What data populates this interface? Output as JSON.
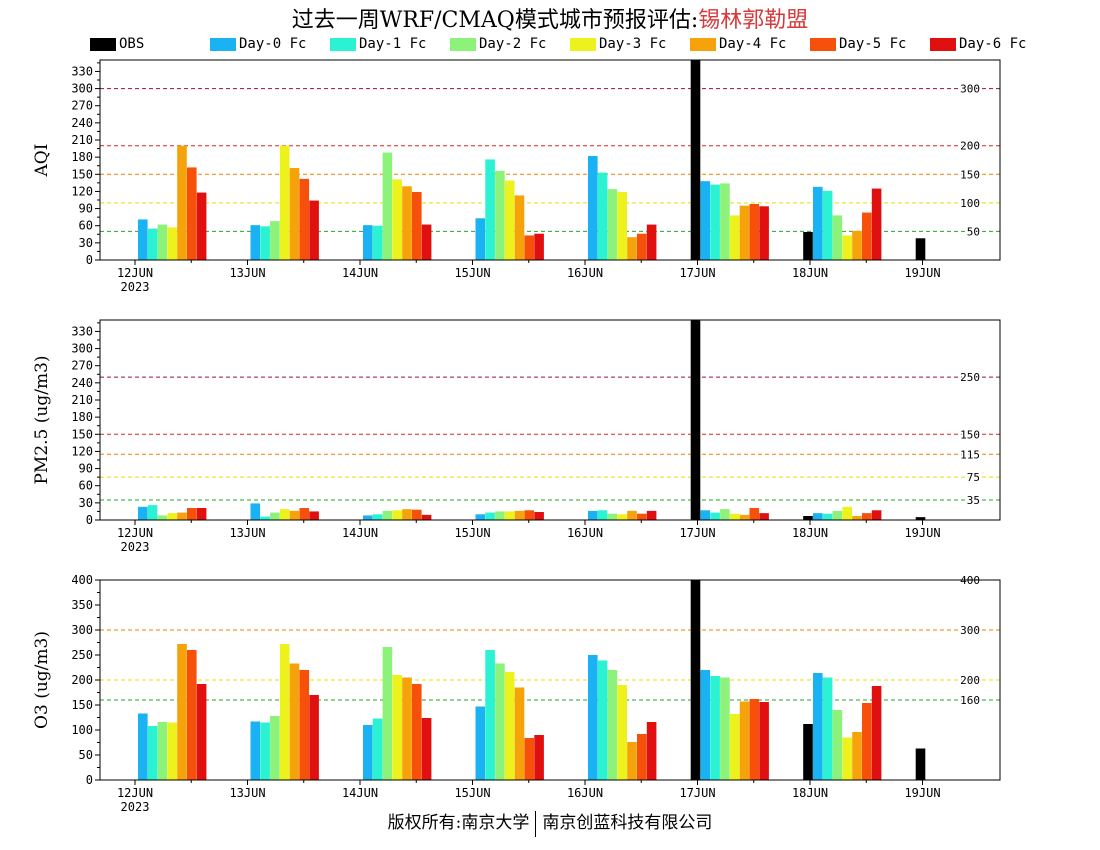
{
  "header": {
    "title_prefix": "过去一周WRF/CMAQ模式城市预报评估:",
    "station": "锡林郭勒盟"
  },
  "footer": {
    "left": "版权所有:南京大学",
    "right": "南京创蓝科技有限公司"
  },
  "colors": {
    "OBS": "#000000",
    "Day-0 Fc": "#1ab2f2",
    "Day-1 Fc": "#2af2d2",
    "Day-2 Fc": "#8cf27a",
    "Day-3 Fc": "#eef21c",
    "Day-4 Fc": "#f6a20a",
    "Day-5 Fc": "#f6500a",
    "Day-6 Fc": "#e01010"
  },
  "chart_data": [
    {
      "type": "bar",
      "ylabel": "AQI",
      "ylim": [
        0,
        350
      ],
      "yticks": [
        0,
        30,
        60,
        90,
        120,
        150,
        180,
        210,
        240,
        270,
        300,
        330
      ],
      "categories": [
        "12JUN",
        "13JUN",
        "14JUN",
        "15JUN",
        "16JUN",
        "17JUN",
        "18JUN",
        "19JUN"
      ],
      "first_category_year": "2023",
      "grid": false,
      "legend_position": "top",
      "thresholds": [
        {
          "value": 50,
          "label": "50",
          "color": "#22aa22"
        },
        {
          "value": 100,
          "label": "100",
          "color": "#e8e000"
        },
        {
          "value": 150,
          "label": "150",
          "color": "#f08000"
        },
        {
          "value": 200,
          "label": "200",
          "color": "#dd2222"
        },
        {
          "value": 300,
          "label": "300",
          "color": "#991133"
        }
      ],
      "series": [
        {
          "name": "OBS",
          "values": [
            null,
            null,
            null,
            null,
            null,
            350,
            49,
            38
          ]
        },
        {
          "name": "Day-0 Fc",
          "values": [
            71,
            61,
            61,
            73,
            182,
            138,
            128,
            null
          ]
        },
        {
          "name": "Day-1 Fc",
          "values": [
            55,
            59,
            60,
            176,
            153,
            132,
            121,
            null
          ]
        },
        {
          "name": "Day-2 Fc",
          "values": [
            62,
            68,
            188,
            156,
            124,
            134,
            78,
            null
          ]
        },
        {
          "name": "Day-3 Fc",
          "values": [
            57,
            200,
            141,
            139,
            119,
            78,
            43,
            null
          ]
        },
        {
          "name": "Day-4 Fc",
          "values": [
            200,
            161,
            129,
            113,
            40,
            95,
            51,
            null
          ]
        },
        {
          "name": "Day-5 Fc",
          "values": [
            162,
            142,
            119,
            43,
            46,
            98,
            83,
            null
          ]
        },
        {
          "name": "Day-6 Fc",
          "values": [
            118,
            104,
            62,
            46,
            62,
            94,
            125,
            null
          ]
        }
      ]
    },
    {
      "type": "bar",
      "ylabel": "PM2.5 (ug/m3)",
      "ylim": [
        0,
        350
      ],
      "yticks": [
        0,
        30,
        60,
        90,
        120,
        150,
        180,
        210,
        240,
        270,
        300,
        330
      ],
      "categories": [
        "12JUN",
        "13JUN",
        "14JUN",
        "15JUN",
        "16JUN",
        "17JUN",
        "18JUN",
        "19JUN"
      ],
      "first_category_year": "2023",
      "grid": false,
      "thresholds": [
        {
          "value": 35,
          "label": "35",
          "color": "#22aa22"
        },
        {
          "value": 75,
          "label": "75",
          "color": "#e8e000"
        },
        {
          "value": 115,
          "label": "115",
          "color": "#f08000"
        },
        {
          "value": 150,
          "label": "150",
          "color": "#dd2222"
        },
        {
          "value": 250,
          "label": "250",
          "color": "#991133"
        }
      ],
      "series": [
        {
          "name": "OBS",
          "values": [
            null,
            null,
            null,
            null,
            null,
            350,
            7,
            5
          ]
        },
        {
          "name": "Day-0 Fc",
          "values": [
            23,
            29,
            8,
            10,
            16,
            17,
            12,
            null
          ]
        },
        {
          "name": "Day-1 Fc",
          "values": [
            26,
            6,
            10,
            13,
            17,
            13,
            11,
            null
          ]
        },
        {
          "name": "Day-2 Fc",
          "values": [
            8,
            13,
            16,
            15,
            11,
            19,
            16,
            null
          ]
        },
        {
          "name": "Day-3 Fc",
          "values": [
            12,
            19,
            17,
            15,
            10,
            11,
            23,
            null
          ]
        },
        {
          "name": "Day-4 Fc",
          "values": [
            13,
            16,
            19,
            16,
            16,
            9,
            7,
            null
          ]
        },
        {
          "name": "Day-5 Fc",
          "values": [
            21,
            21,
            18,
            17,
            11,
            21,
            12,
            null
          ]
        },
        {
          "name": "Day-6 Fc",
          "values": [
            21,
            15,
            9,
            14,
            16,
            12,
            17,
            null
          ]
        }
      ]
    },
    {
      "type": "bar",
      "ylabel": "O3 (ug/m3)",
      "ylim": [
        0,
        400
      ],
      "yticks": [
        0,
        50,
        100,
        150,
        200,
        250,
        300,
        350,
        400
      ],
      "categories": [
        "12JUN",
        "13JUN",
        "14JUN",
        "15JUN",
        "16JUN",
        "17JUN",
        "18JUN",
        "19JUN"
      ],
      "first_category_year": "2023",
      "grid": false,
      "thresholds": [
        {
          "value": 160,
          "label": "160",
          "color": "#22aa22"
        },
        {
          "value": 200,
          "label": "200",
          "color": "#e8e000"
        },
        {
          "value": 300,
          "label": "300",
          "color": "#f08000"
        },
        {
          "value": 400,
          "label": "400",
          "color": "#dd2222"
        }
      ],
      "series": [
        {
          "name": "OBS",
          "values": [
            null,
            null,
            null,
            null,
            null,
            400,
            112,
            63
          ]
        },
        {
          "name": "Day-0 Fc",
          "values": [
            133,
            117,
            110,
            147,
            250,
            220,
            214,
            null
          ]
        },
        {
          "name": "Day-1 Fc",
          "values": [
            108,
            115,
            123,
            260,
            239,
            208,
            205,
            null
          ]
        },
        {
          "name": "Day-2 Fc",
          "values": [
            116,
            128,
            266,
            233,
            220,
            205,
            140,
            null
          ]
        },
        {
          "name": "Day-3 Fc",
          "values": [
            115,
            272,
            210,
            216,
            190,
            132,
            85,
            null
          ]
        },
        {
          "name": "Day-4 Fc",
          "values": [
            272,
            233,
            205,
            185,
            76,
            157,
            96,
            null
          ]
        },
        {
          "name": "Day-5 Fc",
          "values": [
            260,
            220,
            192,
            84,
            92,
            162,
            154,
            null
          ]
        },
        {
          "name": "Day-6 Fc",
          "values": [
            192,
            170,
            124,
            90,
            116,
            156,
            188,
            null
          ]
        }
      ]
    }
  ]
}
